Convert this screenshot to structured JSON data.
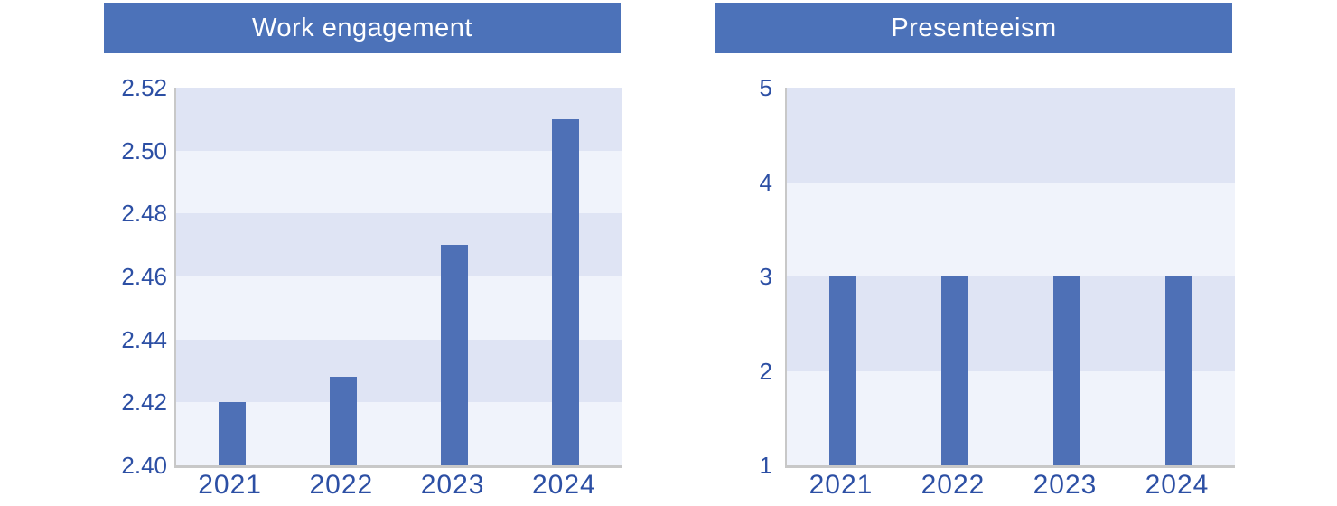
{
  "colors": {
    "banner_blue": "#4c72b9",
    "bar_blue": "#4e70b6",
    "band_dark": "#dfe4f4",
    "band_light": "#f0f3fb",
    "axis_label_blue": "#2c4fa4",
    "axis_line_gray": "#c8c8c8",
    "title_text": "#ffffff",
    "background": "#ffffff"
  },
  "chart_data": [
    {
      "type": "bar",
      "title": "Work engagement",
      "categories": [
        "2021",
        "2022",
        "2023",
        "2024"
      ],
      "values": [
        2.42,
        2.428,
        2.47,
        2.51
      ],
      "ylim": [
        2.4,
        2.52
      ],
      "ytick_labels_top_to_bottom": [
        "2.52",
        "2.50",
        "2.48",
        "2.46",
        "2.44",
        "2.42",
        "2.40"
      ],
      "xlabel": "",
      "ylabel": "",
      "grid": "alternating-horizontal-bands",
      "legend": "none"
    },
    {
      "type": "bar",
      "title": "Presenteeism",
      "categories": [
        "2021",
        "2022",
        "2023",
        "2024"
      ],
      "values": [
        3.0,
        3.0,
        3.0,
        3.0
      ],
      "ylim": [
        1,
        5
      ],
      "ytick_labels_top_to_bottom": [
        "5",
        "4",
        "3",
        "2",
        "1"
      ],
      "xlabel": "",
      "ylabel": "",
      "grid": "alternating-horizontal-bands",
      "legend": "none"
    }
  ]
}
